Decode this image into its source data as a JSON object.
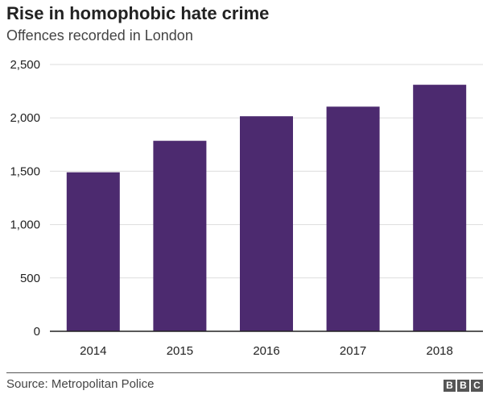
{
  "chart_data": {
    "type": "bar",
    "title": "Rise in homophobic hate crime",
    "subtitle": "Offences recorded in London",
    "categories": [
      "2014",
      "2015",
      "2016",
      "2017",
      "2018"
    ],
    "values": [
      1490,
      1785,
      2015,
      2105,
      2310
    ],
    "ylim": [
      0,
      2500
    ],
    "yticks": [
      0,
      500,
      1000,
      1500,
      2000,
      2500
    ],
    "ytick_labels": [
      "0",
      "500",
      "1,000",
      "1,500",
      "2,000",
      "2,500"
    ],
    "bar_color": "#4c2a6f",
    "grid": true,
    "xlabel": "",
    "ylabel": ""
  },
  "footer": {
    "source": "Source: Metropolitan Police",
    "logo": [
      "B",
      "B",
      "C"
    ]
  }
}
